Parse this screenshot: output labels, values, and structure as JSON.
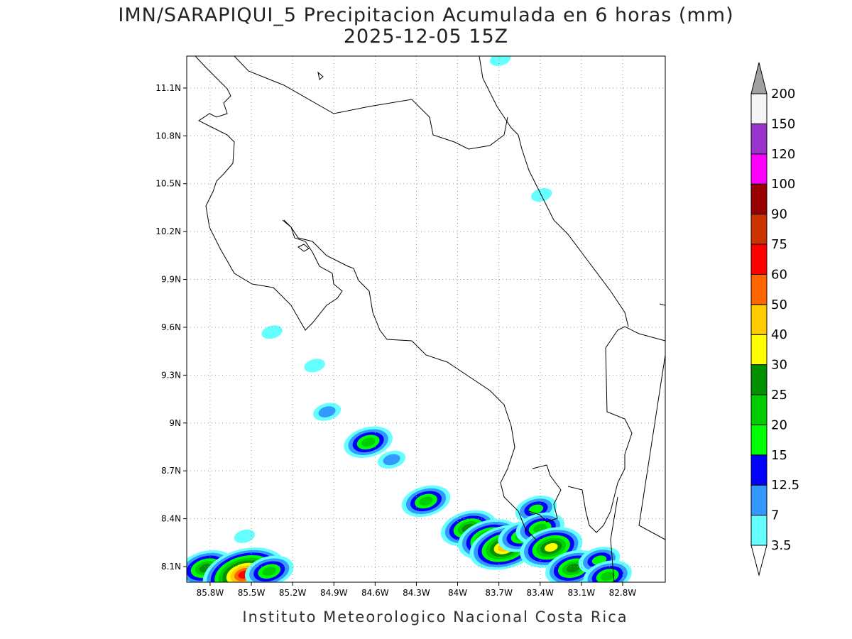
{
  "map": {
    "title": "IMN/SARAPIQUI_5 Precipitacion Acumulada en 6 horas (mm)",
    "subtitle": "2025-12-05 15Z",
    "footer": "Instituto Meteorologico Nacional Costa Rica",
    "lonlim": [
      -85.97,
      -82.49
    ],
    "latlim": [
      8.002,
      11.3
    ],
    "lon_ticks": [
      {
        "value": -85.8,
        "label": "85.8W"
      },
      {
        "value": -85.5,
        "label": "85.5W"
      },
      {
        "value": -85.2,
        "label": "85.2W"
      },
      {
        "value": -84.9,
        "label": "84.9W"
      },
      {
        "value": -84.6,
        "label": "84.6W"
      },
      {
        "value": -84.3,
        "label": "84.3W"
      },
      {
        "value": -84,
        "label": "84W"
      },
      {
        "value": -83.7,
        "label": "83.7W"
      },
      {
        "value": -83.4,
        "label": "83.4W"
      },
      {
        "value": -83.1,
        "label": "83.1W"
      },
      {
        "value": -82.8,
        "label": "82.8W"
      }
    ],
    "lat_ticks": [
      {
        "value": 11.1,
        "label": "11.1N"
      },
      {
        "value": 10.8,
        "label": "10.8N"
      },
      {
        "value": 10.5,
        "label": "10.5N"
      },
      {
        "value": 10.2,
        "label": "10.2N"
      },
      {
        "value": 9.9,
        "label": "9.9N"
      },
      {
        "value": 9.6,
        "label": "9.6N"
      },
      {
        "value": 9.3,
        "label": "9.3N"
      },
      {
        "value": 9,
        "label": "9N"
      },
      {
        "value": 8.7,
        "label": "8.7N"
      },
      {
        "value": 8.4,
        "label": "8.4N"
      },
      {
        "value": 8.1,
        "label": "8.1N"
      }
    ],
    "grid": true,
    "colorbar": {
      "levels": [
        3.5,
        7,
        12.5,
        15,
        20,
        25,
        30,
        40,
        50,
        60,
        75,
        90,
        100,
        120,
        150,
        200
      ],
      "colors": [
        "#66ffff",
        "#3399ff",
        "#0000ff",
        "#00ff00",
        "#00cc00",
        "#009000",
        "#ffff00",
        "#ffcc00",
        "#ff6600",
        "#ff0000",
        "#cc3300",
        "#990000",
        "#ff00ff",
        "#9933cc",
        "#f5f5f5"
      ],
      "under_color": "#ffffff",
      "over_color": "#a0a0a0"
    },
    "rain_cells": [
      {
        "lon": -85.35,
        "lat": 9.57,
        "max": 5
      },
      {
        "lon": -85.04,
        "lat": 9.36,
        "max": 4
      },
      {
        "lon": -84.95,
        "lat": 9.07,
        "max": 10
      },
      {
        "lon": -84.65,
        "lat": 8.88,
        "max": 20
      },
      {
        "lon": -84.48,
        "lat": 8.77,
        "max": 8
      },
      {
        "lon": -84.23,
        "lat": 8.51,
        "max": 20
      },
      {
        "lon": -85.55,
        "lat": 8.29,
        "max": 4
      },
      {
        "lon": -85.83,
        "lat": 8.09,
        "max": 25
      },
      {
        "lon": -85.55,
        "lat": 8.05,
        "max": 60
      },
      {
        "lon": -85.37,
        "lat": 8.07,
        "max": 20
      },
      {
        "lon": -83.92,
        "lat": 8.34,
        "max": 25
      },
      {
        "lon": -83.77,
        "lat": 8.27,
        "max": 30
      },
      {
        "lon": -83.66,
        "lat": 8.22,
        "max": 40
      },
      {
        "lon": -83.53,
        "lat": 8.29,
        "max": 20
      },
      {
        "lon": -83.43,
        "lat": 8.46,
        "max": 15
      },
      {
        "lon": -83.4,
        "lat": 8.34,
        "max": 20
      },
      {
        "lon": -83.32,
        "lat": 8.22,
        "max": 30
      },
      {
        "lon": -83.16,
        "lat": 8.09,
        "max": 25
      },
      {
        "lon": -82.97,
        "lat": 8.14,
        "max": 15
      },
      {
        "lon": -82.91,
        "lat": 8.04,
        "max": 20
      },
      {
        "lon": -83.69,
        "lat": 11.28,
        "max": 4
      },
      {
        "lon": -83.39,
        "lat": 10.43,
        "max": 4
      }
    ]
  }
}
